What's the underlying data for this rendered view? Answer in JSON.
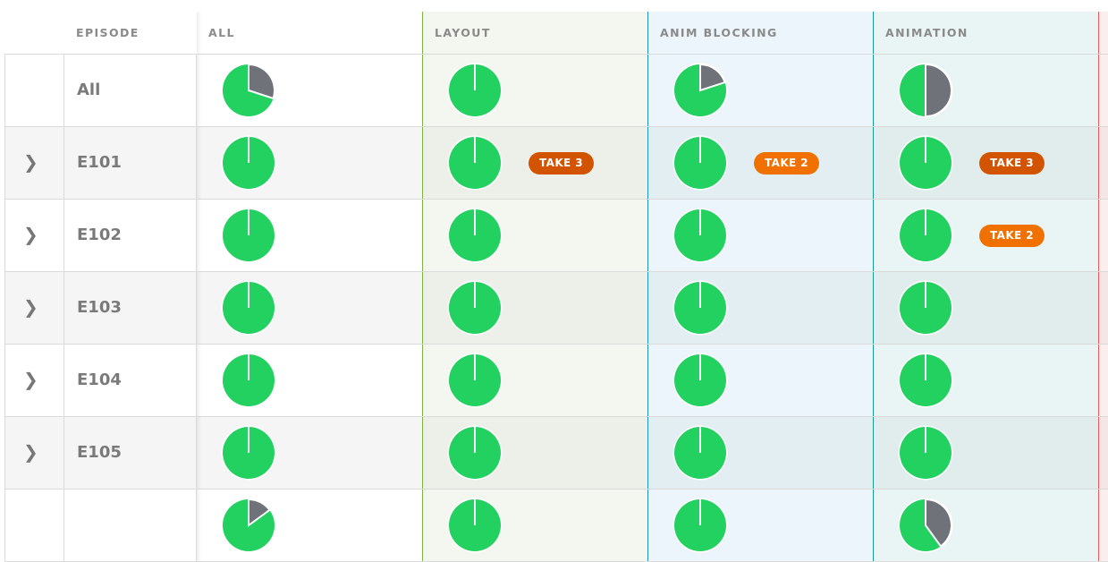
{
  "header": {
    "episode": "EPISODE",
    "columns": [
      "ALL",
      "LAYOUT",
      "ANIM BLOCKING",
      "ANIMATION"
    ]
  },
  "colors": {
    "done": "#23d160",
    "remaining": "#70727a",
    "take3": "#d35400",
    "take2": "#f07000"
  },
  "rows": [
    {
      "episode": "All",
      "expandable": false,
      "progress": [
        0.7,
        1,
        0.8,
        0.5
      ],
      "badges": [
        "",
        "",
        "",
        ""
      ]
    },
    {
      "episode": "E101",
      "expandable": true,
      "progress": [
        1,
        1,
        1,
        1
      ],
      "badges": [
        "",
        "TAKE 3",
        "TAKE 2",
        "TAKE 3"
      ]
    },
    {
      "episode": "E102",
      "expandable": true,
      "progress": [
        1,
        1,
        1,
        1
      ],
      "badges": [
        "",
        "",
        "",
        "TAKE 2"
      ]
    },
    {
      "episode": "E103",
      "expandable": true,
      "progress": [
        1,
        1,
        1,
        1
      ],
      "badges": [
        "",
        "",
        "",
        ""
      ]
    },
    {
      "episode": "E104",
      "expandable": true,
      "progress": [
        1,
        1,
        1,
        1
      ],
      "badges": [
        "",
        "",
        "",
        ""
      ]
    },
    {
      "episode": "E105",
      "expandable": true,
      "progress": [
        1,
        1,
        1,
        1
      ],
      "badges": [
        "",
        "",
        "",
        ""
      ]
    },
    {
      "episode": "",
      "expandable": false,
      "progress": [
        0.85,
        1,
        1,
        0.6
      ],
      "badges": [
        "",
        "",
        "",
        ""
      ]
    }
  ]
}
